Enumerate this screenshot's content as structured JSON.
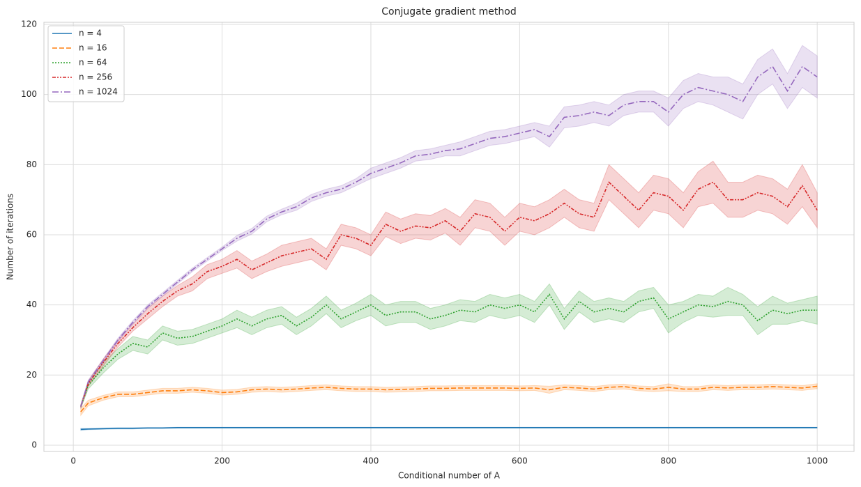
{
  "chart_data": {
    "type": "line",
    "title": "Conjugate gradient method",
    "x_label": "Conditional number of A",
    "y_label": "Number of iterations",
    "x": [
      10,
      20,
      40,
      60,
      80,
      100,
      120,
      140,
      160,
      180,
      200,
      220,
      240,
      260,
      280,
      300,
      320,
      340,
      360,
      380,
      400,
      420,
      440,
      460,
      480,
      500,
      520,
      540,
      560,
      580,
      600,
      620,
      640,
      660,
      680,
      700,
      720,
      740,
      760,
      780,
      800,
      820,
      840,
      860,
      880,
      900,
      920,
      940,
      960,
      980,
      1000
    ],
    "xlim": [
      -39.5,
      1049.5
    ],
    "xticks": [
      0,
      200,
      400,
      600,
      800,
      1000
    ],
    "ylim": [
      -1.8,
      120.6
    ],
    "yticks": [
      0,
      20,
      40,
      60,
      80,
      100,
      120
    ],
    "grid": true,
    "legend": "upper-left",
    "series": [
      {
        "name": "n = 4",
        "color": "#1f77b4",
        "dash": "solid",
        "values": [
          4.5,
          4.6,
          4.7,
          4.8,
          4.8,
          4.9,
          4.9,
          5,
          5,
          5,
          5,
          5,
          5,
          5,
          5,
          5,
          5,
          5,
          5,
          5,
          5,
          5,
          5,
          5,
          5,
          5,
          5,
          5,
          5,
          5,
          5,
          5,
          5,
          5,
          5,
          5,
          5,
          5,
          5,
          5,
          5,
          5,
          5,
          5,
          5,
          5,
          5,
          5,
          5,
          5,
          5
        ],
        "ci": [
          0.3,
          0.2,
          0.2,
          0.2,
          0.2,
          0.1,
          0.1,
          0.1,
          0.1,
          0.1,
          0.1,
          0.1,
          0.1,
          0.1,
          0.1,
          0.1,
          0.1,
          0.1,
          0.1,
          0.1,
          0.1,
          0.1,
          0.1,
          0.1,
          0.1,
          0.1,
          0.1,
          0.1,
          0.1,
          0.1,
          0.1,
          0.1,
          0.1,
          0.1,
          0.1,
          0.1,
          0.1,
          0.1,
          0.1,
          0.1,
          0.1,
          0.1,
          0.1,
          0.1,
          0.1,
          0.1,
          0.1,
          0.1,
          0.1,
          0.1,
          0.1
        ]
      },
      {
        "name": "n = 16",
        "color": "#ff7f0e",
        "dash": "dashed",
        "values": [
          9.5,
          12,
          13.5,
          14.5,
          14.5,
          15,
          15.5,
          15.5,
          15.8,
          15.5,
          15,
          15.2,
          15.8,
          16,
          15.8,
          16,
          16.3,
          16.5,
          16.2,
          16,
          16,
          15.8,
          15.9,
          16,
          16.2,
          16.2,
          16.3,
          16.3,
          16.3,
          16.3,
          16.2,
          16.3,
          15.8,
          16.5,
          16.3,
          16,
          16.5,
          16.7,
          16.2,
          16,
          16.5,
          16,
          16,
          16.5,
          16.3,
          16.5,
          16.5,
          16.7,
          16.5,
          16.3,
          16.8
        ],
        "ci": [
          1,
          0.8,
          0.7,
          0.7,
          0.7,
          0.7,
          0.7,
          0.7,
          0.7,
          0.7,
          0.7,
          0.7,
          0.7,
          0.7,
          0.7,
          0.7,
          0.7,
          0.7,
          0.7,
          0.7,
          0.7,
          0.7,
          0.7,
          0.7,
          0.7,
          0.7,
          0.7,
          0.7,
          0.7,
          0.7,
          0.7,
          0.7,
          1,
          0.7,
          0.7,
          0.7,
          0.7,
          0.7,
          0.7,
          0.7,
          1,
          0.7,
          0.7,
          0.7,
          0.7,
          0.7,
          0.7,
          0.7,
          0.7,
          0.7,
          0.7
        ]
      },
      {
        "name": "n = 64",
        "color": "#2ca02c",
        "dash": "dotted",
        "values": [
          11,
          17,
          22,
          26,
          29,
          28,
          32,
          30.5,
          31,
          32.5,
          34,
          36,
          34,
          36,
          37,
          34,
          36.5,
          40,
          36,
          38,
          40,
          37,
          38,
          38,
          36,
          37,
          38.5,
          38,
          40,
          39,
          40,
          38,
          43,
          36,
          41,
          38,
          39,
          38,
          41,
          42,
          36,
          38,
          40,
          39.5,
          41,
          40,
          35.5,
          38.5,
          37.5,
          38.5,
          38.5
        ],
        "ci": [
          0.5,
          1,
          1.5,
          1.5,
          2,
          2,
          2,
          2,
          2,
          2,
          2,
          2.5,
          2.5,
          2.5,
          2.5,
          2.5,
          2.5,
          2.5,
          2.5,
          2.5,
          3,
          3,
          3,
          3,
          3,
          3,
          3,
          3,
          3,
          3,
          3,
          3,
          3,
          3,
          3,
          3,
          3,
          3,
          3,
          3,
          4,
          3,
          3,
          3,
          4,
          3,
          4,
          4,
          3,
          3,
          4
        ]
      },
      {
        "name": "n = 256",
        "color": "#d62728",
        "dash": "dashdotdot",
        "values": [
          11,
          17.5,
          23.5,
          29,
          33.5,
          37.5,
          41,
          44,
          46,
          49.5,
          51,
          53,
          50,
          52,
          54,
          55,
          56,
          53,
          60,
          59,
          57,
          63,
          61,
          62.5,
          62,
          64,
          61,
          66,
          65,
          61,
          65,
          64,
          66,
          69,
          66,
          65,
          75,
          71,
          67,
          72,
          71,
          67,
          73,
          75,
          70,
          70,
          72,
          71,
          68,
          74,
          67
        ],
        "ci": [
          0.5,
          0.8,
          1,
          1,
          1,
          1.5,
          1.5,
          1.5,
          2,
          2,
          2,
          2.5,
          2.5,
          2.5,
          3,
          3,
          3,
          3,
          3,
          3,
          3,
          3.5,
          3.5,
          3.5,
          3.5,
          3.5,
          4,
          4,
          4,
          4,
          4,
          4,
          4,
          4,
          4,
          4,
          5,
          5,
          5,
          5,
          5,
          5,
          5,
          6,
          5,
          5,
          5,
          5,
          5,
          6,
          5
        ]
      },
      {
        "name": "n = 1024",
        "color": "#9467bd",
        "dash": "dashdot",
        "values": [
          11,
          18,
          24,
          30,
          35,
          39.5,
          43,
          46.5,
          50,
          53,
          56,
          59,
          61,
          64.5,
          66.5,
          68,
          70.5,
          72,
          73,
          75,
          77.5,
          79,
          80.5,
          82.5,
          83,
          84,
          84.5,
          86,
          87.5,
          88,
          89,
          90,
          88,
          93.5,
          94,
          95,
          94,
          97,
          98,
          98,
          95,
          100,
          102,
          101,
          100,
          98,
          105,
          108,
          101,
          108,
          105
        ],
        "ci": [
          0.3,
          0.5,
          0.5,
          0.5,
          0.5,
          0.5,
          0.5,
          0.5,
          0.5,
          0.5,
          0.5,
          0.8,
          0.8,
          0.8,
          0.8,
          1,
          1,
          1,
          1,
          1,
          1.5,
          1.5,
          1.5,
          1.5,
          1.5,
          1.5,
          2,
          2,
          2,
          2,
          2,
          2,
          3,
          3,
          3,
          3,
          3,
          3,
          3,
          3,
          4,
          4,
          4,
          4,
          5,
          5,
          5,
          5,
          5,
          6,
          6
        ]
      }
    ]
  }
}
